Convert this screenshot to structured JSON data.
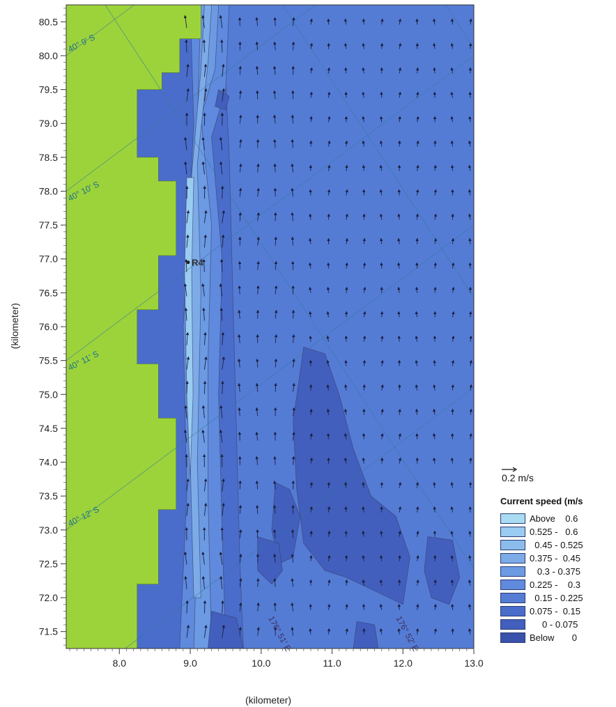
{
  "chart_data": {
    "type": "heatmap",
    "title": "",
    "xlabel": "(kilometer)",
    "ylabel": "(kilometer)",
    "xlim": [
      7.25,
      13.0
    ],
    "ylim": [
      71.25,
      80.75
    ],
    "x_ticks": [
      "8.0",
      "9.0",
      "10.0",
      "11.0",
      "12.0",
      "13.0"
    ],
    "y_ticks": [
      "71.5",
      "72.0",
      "72.5",
      "73.0",
      "73.5",
      "74.0",
      "74.5",
      "75.0",
      "75.5",
      "76.0",
      "76.5",
      "77.0",
      "77.5",
      "78.0",
      "78.5",
      "79.0",
      "79.5",
      "80.0",
      "80.5"
    ],
    "latitude_labels": [
      "40° 9' S",
      "40° 10' S",
      "40° 11' S",
      "40° 12' S"
    ],
    "longitude_labels": [
      "176° 51' E",
      "176° 52' E"
    ],
    "station_label": "R4",
    "vector_scale_label": "0.2 m/s",
    "legend": {
      "title": "Current speed (m/s",
      "entries": [
        {
          "label": "Above    0.6",
          "color": "#a9dcf3"
        },
        {
          "label": "0.525 -   0.6",
          "color": "#99ccf0"
        },
        {
          "label": "  0.45 - 0.525",
          "color": "#8bbcec"
        },
        {
          "label": "0.375 -  0.45",
          "color": "#7cabe8"
        },
        {
          "label": "   0.3 - 0.375",
          "color": "#6c9ae3"
        },
        {
          "label": "0.225 -    0.3",
          "color": "#5f8add"
        },
        {
          "label": "  0.15 - 0.225",
          "color": "#557cd5"
        },
        {
          "label": "0.075 -  0.15",
          "color": "#4a6dcb"
        },
        {
          "label": "     0 - 0.075",
          "color": "#425fbd"
        },
        {
          "label": "Below       0",
          "color": "#3a52ab"
        }
      ]
    },
    "land_color": "#9dd33a"
  }
}
